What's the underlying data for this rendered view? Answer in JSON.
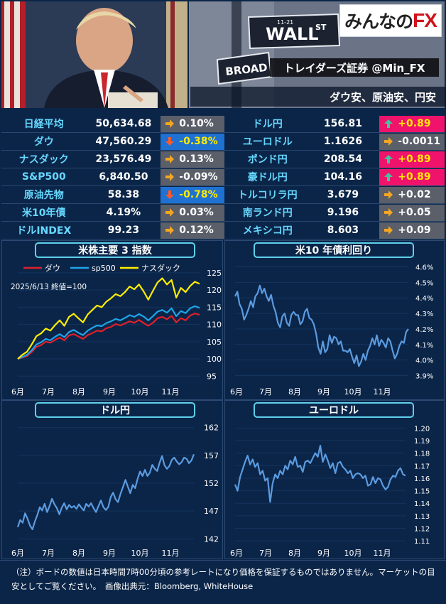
{
  "header": {
    "logo_text_a": "みんなの",
    "logo_text_b": "FX",
    "sign_wall": "WALL",
    "sign_st": "ST",
    "sign_street_num": "11-21",
    "sign_broad": "BROAD",
    "broker": "トレイダーズ証券 @Min_FX",
    "headline": "ダウ安、原油安、円安"
  },
  "colors": {
    "up": "#f0136b",
    "down": "#1f72d2",
    "flat": "#5a5f69",
    "name": "#66d8ff",
    "line": "#5b9be0"
  },
  "rates_left": [
    {
      "name": "日経平均",
      "value": "50,634.68",
      "change": "0.10%",
      "dir": "flat"
    },
    {
      "name": "ダウ",
      "value": "47,560.29",
      "change": "-0.38%",
      "dir": "down"
    },
    {
      "name": "ナスダック",
      "value": "23,576.49",
      "change": "0.13%",
      "dir": "flat"
    },
    {
      "name": "S&P500",
      "value": "6,840.50",
      "change": "-0.09%",
      "dir": "flat"
    },
    {
      "name": "原油先物",
      "value": "58.38",
      "change": "-0.78%",
      "dir": "down"
    },
    {
      "name": "米10年債",
      "value": "4.19%",
      "change": "0.03%",
      "dir": "flat"
    },
    {
      "name": "ドルINDEX",
      "value": "99.23",
      "change": "0.12%",
      "dir": "flat"
    }
  ],
  "rates_right": [
    {
      "name": "ドル円",
      "value": "156.81",
      "change": "+0.89",
      "dir": "up"
    },
    {
      "name": "ユーロドル",
      "value": "1.1626",
      "change": "-0.0011",
      "dir": "flat"
    },
    {
      "name": "ポンド円",
      "value": "208.54",
      "change": "+0.89",
      "dir": "up"
    },
    {
      "name": "豪ドル円",
      "value": "104.16",
      "change": "+0.89",
      "dir": "up"
    },
    {
      "name": "トルコリラ円",
      "value": "3.679",
      "change": "+0.02",
      "dir": "flat"
    },
    {
      "name": "南ランド円",
      "value": "9.196",
      "change": "+0.05",
      "dir": "flat"
    },
    {
      "name": "メキシコ円",
      "value": "8.603",
      "change": "+0.09",
      "dir": "flat"
    }
  ],
  "chart_data": [
    {
      "type": "line",
      "title": "米株主要 3 指数",
      "note": "2025/6/13 終値=100",
      "x_ticks": [
        "6月",
        "7月",
        "8月",
        "9月",
        "10月",
        "11月"
      ],
      "ylim": [
        93,
        126
      ],
      "y_ticks": [
        95,
        100,
        105,
        110,
        115,
        120,
        125
      ],
      "series": [
        {
          "name": "ダウ",
          "color": "#e0202a",
          "values": [
            100,
            100.4,
            100.8,
            102,
            103.5,
            104,
            105,
            104.7,
            105.5,
            106.2,
            105.4,
            106.8,
            107.2,
            106.5,
            105.8,
            106.9,
            107.5,
            108.2,
            108,
            108.9,
            109.3,
            110.1,
            109.7,
            110.3,
            110.9,
            110.5,
            111.3,
            110.4,
            109.6,
            110.5,
            111.8,
            112.2,
            111.5,
            112.5,
            110.6,
            111.8,
            111.2,
            112.6,
            113.2,
            112.8
          ]
        },
        {
          "name": "sp500",
          "color": "#1ea4e8",
          "values": [
            100,
            100.6,
            101.2,
            102.5,
            104.2,
            104.8,
            105.8,
            105.4,
            106.4,
            107.2,
            106.3,
            107.8,
            108.4,
            107.6,
            106.9,
            108.2,
            109,
            109.7,
            109.5,
            110.4,
            110.9,
            111.6,
            111.2,
            111.9,
            112.7,
            112.2,
            113,
            112.3,
            111.2,
            112.4,
            113.7,
            114.2,
            113.4,
            114.7,
            112.4,
            113.9,
            113.3,
            114.7,
            115.3,
            114.8
          ]
        },
        {
          "name": "ナスダック",
          "color": "#ffee00",
          "values": [
            100,
            101.2,
            102.1,
            104.2,
            106.6,
            107.4,
            108.8,
            108.2,
            109.8,
            111.2,
            109.6,
            112.2,
            113.1,
            111.8,
            110.6,
            112.9,
            114.2,
            115.5,
            115,
            116.6,
            117.6,
            118.8,
            118.2,
            119.4,
            121,
            120.2,
            121.6,
            119.6,
            117.2,
            119.8,
            122.2,
            123.4,
            121.6,
            122.9,
            117.8,
            120.6,
            119.4,
            121.2,
            122.4,
            121.8
          ]
        }
      ]
    },
    {
      "type": "line",
      "title": "米10 年債利回り",
      "x_ticks": [
        "6月",
        "7月",
        "8月",
        "9月",
        "10月",
        "11月"
      ],
      "ylim": [
        3.87,
        4.63
      ],
      "y_ticks": [
        "3.9%",
        "4.0%",
        "4.1%",
        "4.2%",
        "4.3%",
        "4.4%",
        "4.5%",
        "4.6%"
      ],
      "y_tick_values": [
        3.9,
        4.0,
        4.1,
        4.2,
        4.3,
        4.4,
        4.5,
        4.6
      ],
      "series": [
        {
          "name": "",
          "color": "#5b9be0",
          "values": [
            4.41,
            4.44,
            4.36,
            4.33,
            4.26,
            4.29,
            4.33,
            4.38,
            4.34,
            4.41,
            4.43,
            4.48,
            4.43,
            4.46,
            4.41,
            4.38,
            4.42,
            4.35,
            4.31,
            4.24,
            4.21,
            4.28,
            4.3,
            4.24,
            4.22,
            4.29,
            4.31,
            4.29,
            4.29,
            4.23,
            4.25,
            4.31,
            4.33,
            4.27,
            4.26,
            4.23,
            4.17,
            4.08,
            4.04,
            4.12,
            4.05,
            4.07,
            4.16,
            4.11,
            4.15,
            4.14,
            4.1,
            4.12,
            4.06,
            4.06,
            4.05,
            4.07,
            4.02,
            3.98,
            4.03,
            3.96,
            3.99,
            4.04,
            4.0,
            4.06,
            4.09,
            4.14,
            4.1,
            4.16,
            4.09,
            4.13,
            4.11,
            4.08,
            4.14,
            4.12,
            4.06,
            4.01,
            4.04,
            4.09,
            4.12,
            4.11,
            4.18,
            4.2
          ]
        }
      ]
    },
    {
      "type": "line",
      "title": "ドル円",
      "x_ticks": [
        "6月",
        "7月",
        "8月",
        "9月",
        "10月",
        "11月"
      ],
      "ylim": [
        140.5,
        163.5
      ],
      "y_ticks": [
        142,
        147,
        152,
        157,
        162
      ],
      "series": [
        {
          "name": "",
          "color": "#5b9be0",
          "values": [
            144.1,
            145.4,
            144.9,
            146.6,
            145.6,
            144.4,
            143.7,
            145.1,
            146.3,
            147.7,
            147.1,
            148.3,
            146.8,
            147.9,
            149.2,
            148.2,
            147.5,
            146.4,
            147.6,
            148.4,
            147.3,
            148.1,
            147.6,
            147.9,
            147.4,
            148.2,
            147.6,
            147.1,
            148.3,
            147.8,
            148.4,
            147.5,
            146.8,
            147.9,
            148.9,
            147.7,
            147.2,
            147.7,
            149.5,
            150.3,
            149.1,
            148.6,
            150.1,
            151.3,
            152.6,
            151.4,
            150.2,
            151.7,
            151.1,
            152.8,
            154.1,
            153.3,
            154.4,
            153.3,
            153.9,
            155.3,
            154.6,
            154.2,
            155.7,
            156.9,
            155.2,
            154.6,
            155.1,
            156.2,
            156.6,
            155.9,
            155.4,
            155.8,
            156.6,
            156.4,
            155.6,
            156.1,
            157.2
          ]
        }
      ]
    },
    {
      "type": "line",
      "title": "ユーロドル",
      "x_ticks": [
        "6月",
        "7月",
        "8月",
        "9月",
        "10月",
        "11月"
      ],
      "ylim": [
        1.105,
        1.207
      ],
      "y_ticks": [
        "1.11",
        "1.12",
        "1.13",
        "1.14",
        "1.15",
        "1.16",
        "1.17",
        "1.18",
        "1.19",
        "1.20"
      ],
      "y_tick_values": [
        1.11,
        1.12,
        1.13,
        1.14,
        1.15,
        1.16,
        1.17,
        1.18,
        1.19,
        1.2
      ],
      "series": [
        {
          "name": "",
          "color": "#5b9be0",
          "values": [
            1.155,
            1.15,
            1.161,
            1.167,
            1.173,
            1.178,
            1.171,
            1.175,
            1.169,
            1.172,
            1.163,
            1.166,
            1.158,
            1.16,
            1.141,
            1.156,
            1.163,
            1.16,
            1.166,
            1.163,
            1.17,
            1.167,
            1.174,
            1.171,
            1.177,
            1.169,
            1.17,
            1.165,
            1.173,
            1.174,
            1.172,
            1.176,
            1.18,
            1.177,
            1.186,
            1.173,
            1.179,
            1.174,
            1.168,
            1.172,
            1.164,
            1.172,
            1.173,
            1.169,
            1.167,
            1.164,
            1.166,
            1.16,
            1.163,
            1.164,
            1.163,
            1.16,
            1.162,
            1.154,
            1.155,
            1.161,
            1.156,
            1.16,
            1.159,
            1.154,
            1.151,
            1.153,
            1.159,
            1.162,
            1.161,
            1.166,
            1.168,
            1.163,
            1.162
          ]
        }
      ]
    }
  ],
  "footnote": "（注）ボードの数値は日本時間7時00分頃の参考レートになり価格を保証するものではありません。マーケットの目安としてご覧ください。　画像出典元：Bloomberg, WhiteHouse"
}
